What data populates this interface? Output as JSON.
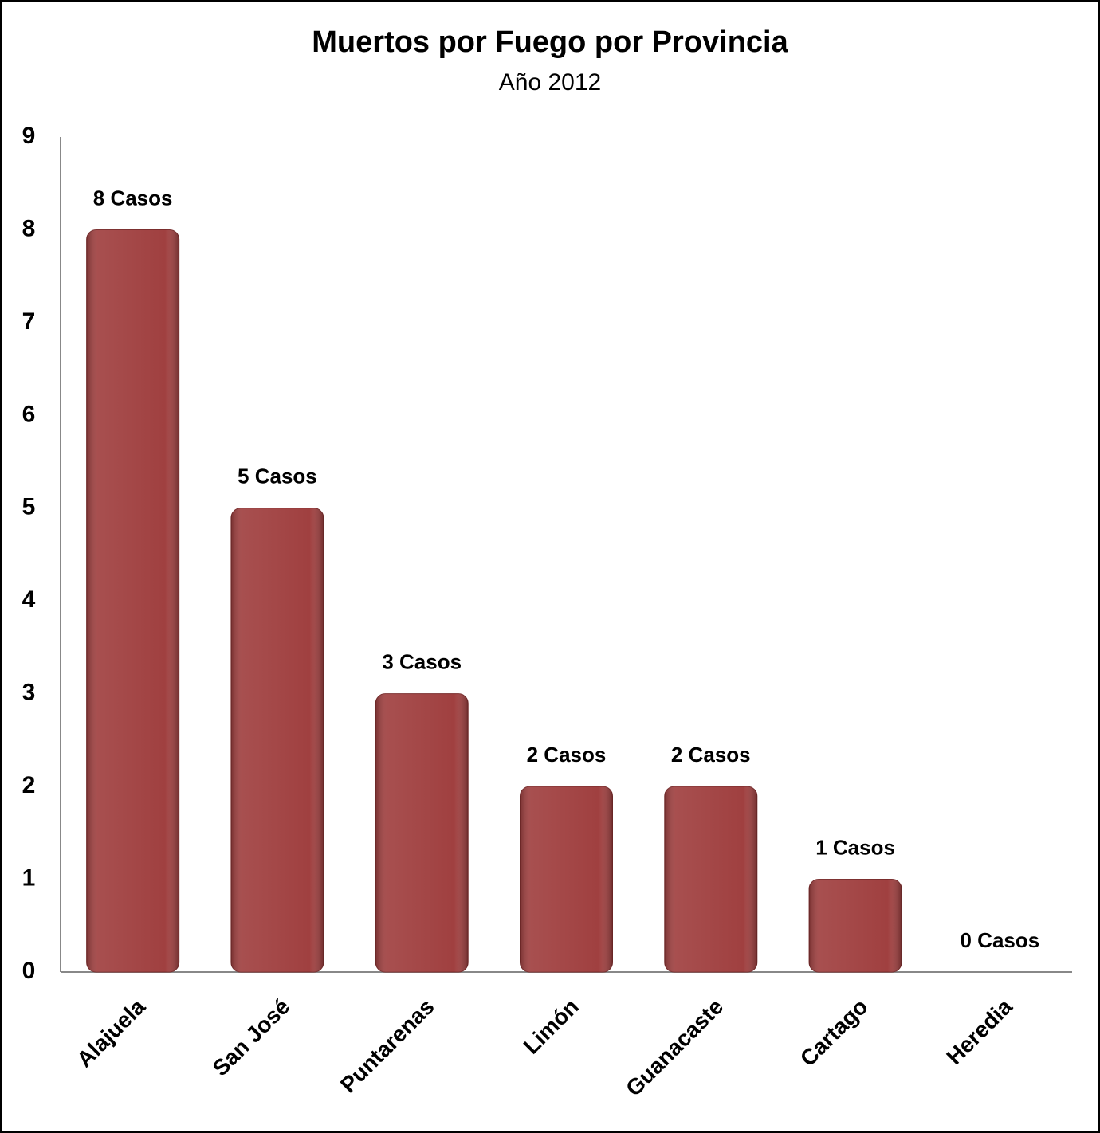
{
  "chart_data": {
    "type": "bar",
    "title": "Muertos por Fuego por Provincia",
    "subtitle": "Año 2012",
    "categories": [
      "Alajuela",
      "San José",
      "Puntarenas",
      "Limón",
      "Guanacaste",
      "Cartago",
      "Heredia"
    ],
    "values": [
      8,
      5,
      3,
      2,
      2,
      1,
      0
    ],
    "value_labels": [
      "8 Casos",
      "5 Casos",
      "3 Casos",
      "2 Casos",
      "2 Casos",
      "1 Casos",
      "0 Casos"
    ],
    "color": "#a04040",
    "ylim": [
      0,
      9
    ],
    "yticks": [
      0,
      1,
      2,
      3,
      4,
      5,
      6,
      7,
      8,
      9
    ],
    "grid": false
  }
}
